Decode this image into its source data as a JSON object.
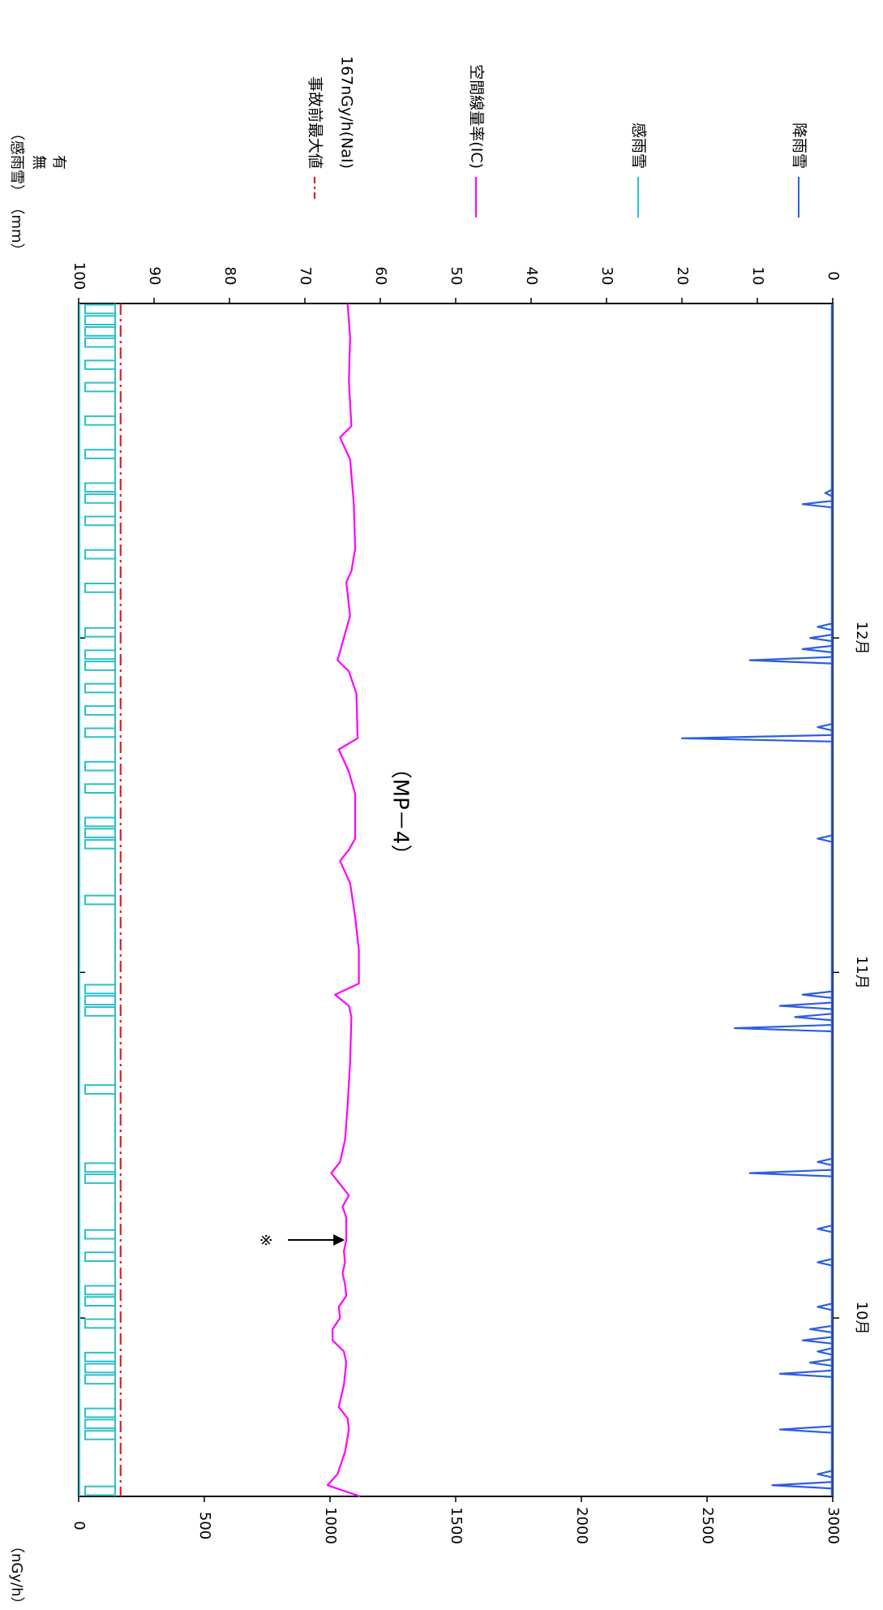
{
  "chart_data": {
    "type": "line",
    "title": "（MP－4）",
    "orientation": "rotated-90-clockwise",
    "x": {
      "kind": "time",
      "range": [
        "09-15",
        "12-31"
      ],
      "month_ticks": [
        {
          "date": "10-01",
          "label": "10月"
        },
        {
          "date": "11-01",
          "label": "11月"
        },
        {
          "date": "12-01",
          "label": "12月"
        }
      ]
    },
    "y_dose": {
      "unit_label": "（nGy/h）",
      "range": [
        0,
        3000
      ],
      "ticks": [
        0,
        500,
        1000,
        1500,
        2000,
        2500,
        3000
      ]
    },
    "y_precip": {
      "unit_label": "（mm）",
      "range": [
        0,
        100
      ],
      "ticks": [
        0,
        10,
        20,
        30,
        40,
        50,
        60,
        70,
        80,
        90,
        100
      ]
    },
    "y_sensor": {
      "unit_label": "（感雨雪）",
      "states": [
        "無",
        "有"
      ]
    },
    "reference_line": {
      "name": "事故前最大値",
      "value_label": "167nGy/h(NaI)",
      "value": 167,
      "color": "#e02020"
    },
    "annotation": {
      "symbol": "※",
      "date": "10-08",
      "value": 1065
    },
    "series": [
      {
        "name": "空間線量率(IC)",
        "color": "#ff00ff",
        "points": [
          [
            "09-15",
            1120
          ],
          [
            "09-16",
            990
          ],
          [
            "09-17",
            1030
          ],
          [
            "09-19",
            1060
          ],
          [
            "09-21",
            1075
          ],
          [
            "09-22",
            1070
          ],
          [
            "09-23",
            1035
          ],
          [
            "09-25",
            1055
          ],
          [
            "09-27",
            1065
          ],
          [
            "09-28",
            1055
          ],
          [
            "09-29",
            1010
          ],
          [
            "09-30",
            1010
          ],
          [
            "10-01",
            1040
          ],
          [
            "10-02",
            1035
          ],
          [
            "10-03",
            1065
          ],
          [
            "10-04",
            1060
          ],
          [
            "10-05",
            1050
          ],
          [
            "10-06",
            1060
          ],
          [
            "10-07",
            1055
          ],
          [
            "10-08",
            1065
          ],
          [
            "10-10",
            1065
          ],
          [
            "10-11",
            1050
          ],
          [
            "10-12",
            1075
          ],
          [
            "10-14",
            1005
          ],
          [
            "10-15",
            1040
          ],
          [
            "10-17",
            1060
          ],
          [
            "10-20",
            1070
          ],
          [
            "10-24",
            1080
          ],
          [
            "10-28",
            1085
          ],
          [
            "10-29",
            1075
          ],
          [
            "10-30",
            1020
          ],
          [
            "10-31",
            1115
          ],
          [
            "11-03",
            1115
          ],
          [
            "11-06",
            1100
          ],
          [
            "11-09",
            1080
          ],
          [
            "11-11",
            1040
          ],
          [
            "11-12",
            1075
          ],
          [
            "11-13",
            1100
          ],
          [
            "11-17",
            1100
          ],
          [
            "11-19",
            1075
          ],
          [
            "11-21",
            1035
          ],
          [
            "11-22",
            1110
          ],
          [
            "11-26",
            1105
          ],
          [
            "11-28",
            1075
          ],
          [
            "11-29",
            1030
          ],
          [
            "12-03",
            1080
          ],
          [
            "12-06",
            1065
          ],
          [
            "12-07",
            1085
          ],
          [
            "12-09",
            1100
          ],
          [
            "12-13",
            1095
          ],
          [
            "12-17",
            1080
          ],
          [
            "12-19",
            1040
          ],
          [
            "12-20",
            1085
          ],
          [
            "12-24",
            1075
          ],
          [
            "12-28",
            1080
          ],
          [
            "12-31",
            1070
          ]
        ]
      },
      {
        "name": "降雨雪",
        "color": "#2c5fe0",
        "spikes": [
          [
            "09-16",
            8
          ],
          [
            "09-17",
            2
          ],
          [
            "09-21",
            7
          ],
          [
            "09-26",
            7
          ],
          [
            "09-27",
            3
          ],
          [
            "09-28",
            2
          ],
          [
            "09-29",
            4
          ],
          [
            "09-30",
            3
          ],
          [
            "10-02",
            2
          ],
          [
            "10-06",
            2
          ],
          [
            "10-09",
            2
          ],
          [
            "10-14",
            11
          ],
          [
            "10-15",
            2
          ],
          [
            "10-27",
            13
          ],
          [
            "10-28",
            5
          ],
          [
            "10-29",
            7
          ],
          [
            "10-30",
            4
          ],
          [
            "11-13",
            2
          ],
          [
            "11-22",
            20
          ],
          [
            "11-23",
            2
          ],
          [
            "11-29",
            11
          ],
          [
            "11-30",
            4
          ],
          [
            "12-01",
            3
          ],
          [
            "12-02",
            2
          ],
          [
            "12-13",
            4
          ],
          [
            "12-14",
            1
          ]
        ]
      },
      {
        "name": "感雨雪",
        "color": "#2cc0c8",
        "on_periods": [
          [
            "09-15",
            "09-16"
          ],
          [
            "09-20",
            "09-21"
          ],
          [
            "09-21",
            "09-22"
          ],
          [
            "09-22",
            "09-23"
          ],
          [
            "09-25",
            "09-26"
          ],
          [
            "09-26",
            "09-27"
          ],
          [
            "09-27",
            "09-28"
          ],
          [
            "09-30",
            "10-01"
          ],
          [
            "10-02",
            "10-03"
          ],
          [
            "10-03",
            "10-04"
          ],
          [
            "10-06",
            "10-07"
          ],
          [
            "10-08",
            "10-09"
          ],
          [
            "10-13",
            "10-14"
          ],
          [
            "10-14",
            "10-15"
          ],
          [
            "10-21",
            "10-22"
          ],
          [
            "10-28",
            "10-29"
          ],
          [
            "10-29",
            "10-30"
          ],
          [
            "10-30",
            "10-31"
          ],
          [
            "11-07",
            "11-08"
          ],
          [
            "11-12",
            "11-13"
          ],
          [
            "11-13",
            "11-14"
          ],
          [
            "11-14",
            "11-15"
          ],
          [
            "11-17",
            "11-18"
          ],
          [
            "11-19",
            "11-20"
          ],
          [
            "11-22",
            "11-23"
          ],
          [
            "11-24",
            "11-25"
          ],
          [
            "11-26",
            "11-27"
          ],
          [
            "11-28",
            "11-29"
          ],
          [
            "11-29",
            "11-30"
          ],
          [
            "12-01",
            "12-02"
          ],
          [
            "12-05",
            "12-06"
          ],
          [
            "12-08",
            "12-09"
          ],
          [
            "12-11",
            "12-12"
          ],
          [
            "12-13",
            "12-14"
          ],
          [
            "12-14",
            "12-15"
          ],
          [
            "12-17",
            "12-18"
          ],
          [
            "12-20",
            "12-21"
          ],
          [
            "12-23",
            "12-24"
          ],
          [
            "12-25",
            "12-26"
          ],
          [
            "12-27",
            "12-28"
          ],
          [
            "12-28",
            "12-29"
          ],
          [
            "12-29",
            "12-30"
          ],
          [
            "12-30",
            "12-31"
          ]
        ]
      }
    ]
  }
}
